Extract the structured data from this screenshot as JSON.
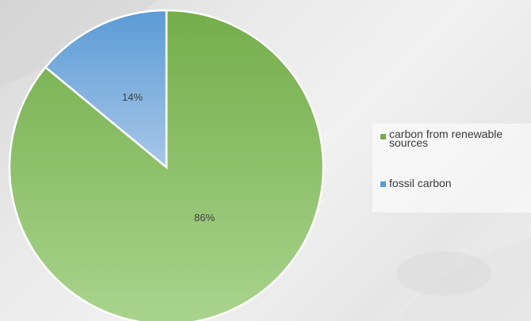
{
  "chart_data": {
    "type": "pie",
    "slices": [
      {
        "label": "carbon from renewable sources",
        "value": 86,
        "data_label": "86%",
        "color_top": "#74ad4a",
        "color_bottom": "#a9d48d"
      },
      {
        "label": "fossil carbon",
        "value": 14,
        "data_label": "14%",
        "color_top": "#5b9bd5",
        "color_bottom": "#a7c7e9"
      }
    ],
    "legend": {
      "placement": "right",
      "items": [
        {
          "label": "carbon from renewable sources",
          "color": "#74ad4a"
        },
        {
          "label": "fossil carbon",
          "color": "#5b9bd5"
        }
      ]
    }
  }
}
